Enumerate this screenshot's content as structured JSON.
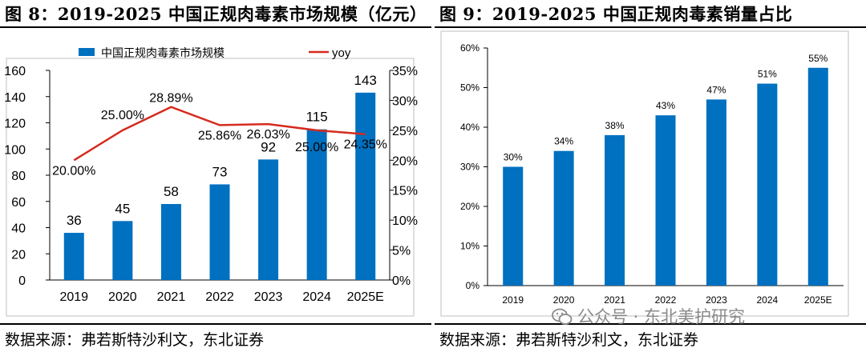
{
  "left": {
    "title": "图 8：2019-2025 中国正规肉毒素市场规模（亿元）",
    "source": "数据来源：弗若斯特沙利文，东北证券"
  },
  "right": {
    "title": "图 9：2019-2025 中国正规肉毒素销量占比",
    "source": "数据来源：弗若斯特沙利文，东北证券"
  },
  "watermark": "公众号 · 东北美护研究",
  "colors": {
    "bar": "#0070C0",
    "line": "#D52B1E"
  },
  "chart_data": [
    {
      "type": "bar",
      "title": "2019-2025 中国正规肉毒素市场规模（亿元）",
      "categories": [
        "2019",
        "2020",
        "2021",
        "2022",
        "2023",
        "2024",
        "2025E"
      ],
      "series": [
        {
          "name": "中国正规肉毒素市场规模",
          "kind": "bar",
          "axis": "left",
          "values": [
            36,
            45,
            58,
            73,
            92,
            115,
            143
          ],
          "labels": [
            "36",
            "45",
            "58",
            "73",
            "92",
            "115",
            "143"
          ]
        },
        {
          "name": "yoy",
          "kind": "line",
          "axis": "right",
          "values": [
            20.0,
            25.0,
            28.89,
            25.86,
            26.03,
            25.0,
            24.35
          ],
          "labels": [
            "20.00%",
            "25.00%",
            "28.89%",
            "25.86%",
            "26.03%",
            "25.00%",
            "24.35%"
          ]
        }
      ],
      "ylim": [
        0,
        160
      ],
      "yticks": [
        "0",
        "20",
        "40",
        "60",
        "80",
        "100",
        "120",
        "140",
        "160"
      ],
      "y2lim": [
        0,
        35
      ],
      "y2ticks": [
        "0%",
        "5%",
        "10%",
        "15%",
        "20%",
        "25%",
        "30%",
        "35%"
      ],
      "legend": {
        "position": "top",
        "bar_label": "中国正规肉毒素市场规模",
        "line_label": "yoy"
      }
    },
    {
      "type": "bar",
      "title": "2019-2025 中国正规肉毒素销量占比",
      "categories": [
        "2019",
        "2020",
        "2021",
        "2022",
        "2023",
        "2024",
        "2025E"
      ],
      "values": [
        30,
        34,
        38,
        43,
        47,
        51,
        55
      ],
      "labels": [
        "30%",
        "34%",
        "38%",
        "43%",
        "47%",
        "51%",
        "55%"
      ],
      "ylim": [
        0,
        60
      ],
      "yticks": [
        "0%",
        "10%",
        "20%",
        "30%",
        "40%",
        "50%",
        "60%"
      ]
    }
  ]
}
